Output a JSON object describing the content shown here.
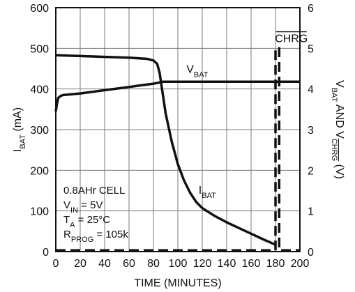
{
  "chart_data": {
    "type": "line",
    "title": "",
    "xlabel": "TIME (MINUTES)",
    "ylabel_left": {
      "main": "I",
      "sub": "BAT",
      "tail": " (mA)"
    },
    "ylabel_right": {
      "p1": "V",
      "s1": "BAT",
      "p2": " AND V",
      "s2": "CHRG",
      "p3": " (V)"
    },
    "xlim": [
      0,
      200
    ],
    "ylim_left": [
      0,
      600
    ],
    "ylim_right": [
      0,
      6
    ],
    "grid": true,
    "x_ticks": [
      "0",
      "20",
      "40",
      "60",
      "80",
      "100",
      "120",
      "140",
      "160",
      "180",
      "200"
    ],
    "y_left_ticks": [
      "0",
      "100",
      "200",
      "300",
      "400",
      "500",
      "600"
    ],
    "y_right_ticks": [
      "0",
      "1",
      "2",
      "3",
      "4",
      "5",
      "6"
    ],
    "series": [
      {
        "label_main": "I",
        "label_sub": "BAT",
        "axis": "left",
        "style": "solid",
        "x": [
          0,
          20,
          40,
          60,
          75,
          80,
          83,
          85,
          87,
          90,
          95,
          100,
          105,
          110,
          115,
          120,
          130,
          140,
          150,
          160,
          170,
          180
        ],
        "y": [
          483,
          481,
          479,
          477,
          474,
          470,
          462,
          440,
          400,
          340,
          270,
          215,
          175,
          145,
          122,
          107,
          88,
          72,
          58,
          44,
          30,
          17
        ]
      },
      {
        "label_main": "V",
        "label_sub": "BAT",
        "axis": "right",
        "style": "solid",
        "x": [
          0,
          1,
          2,
          4,
          6,
          10,
          20,
          30,
          40,
          50,
          60,
          70,
          80,
          85,
          88,
          100,
          120,
          140,
          160,
          180,
          200
        ],
        "y": [
          3.45,
          3.65,
          3.78,
          3.83,
          3.85,
          3.86,
          3.89,
          3.93,
          3.97,
          4.01,
          4.05,
          4.09,
          4.13,
          4.16,
          4.18,
          4.18,
          4.18,
          4.18,
          4.18,
          4.18,
          4.18
        ]
      },
      {
        "label_main": "CHRG",
        "axis": "right",
        "style": "dashed",
        "overline": true,
        "x": [
          0,
          180,
          180,
          183,
          183,
          200
        ],
        "y": [
          0.03,
          0.03,
          5.0,
          5.0,
          0.03,
          0.03
        ]
      }
    ],
    "annotations": [
      {
        "main": "0.8AHr CELL"
      },
      {
        "main": "V",
        "sub": "IN",
        "tail": " = 5V"
      },
      {
        "main": "T",
        "sub": "A",
        "tail": " = 25°C"
      },
      {
        "main": "R",
        "sub": "PROG",
        "tail": " = 105k"
      }
    ]
  }
}
